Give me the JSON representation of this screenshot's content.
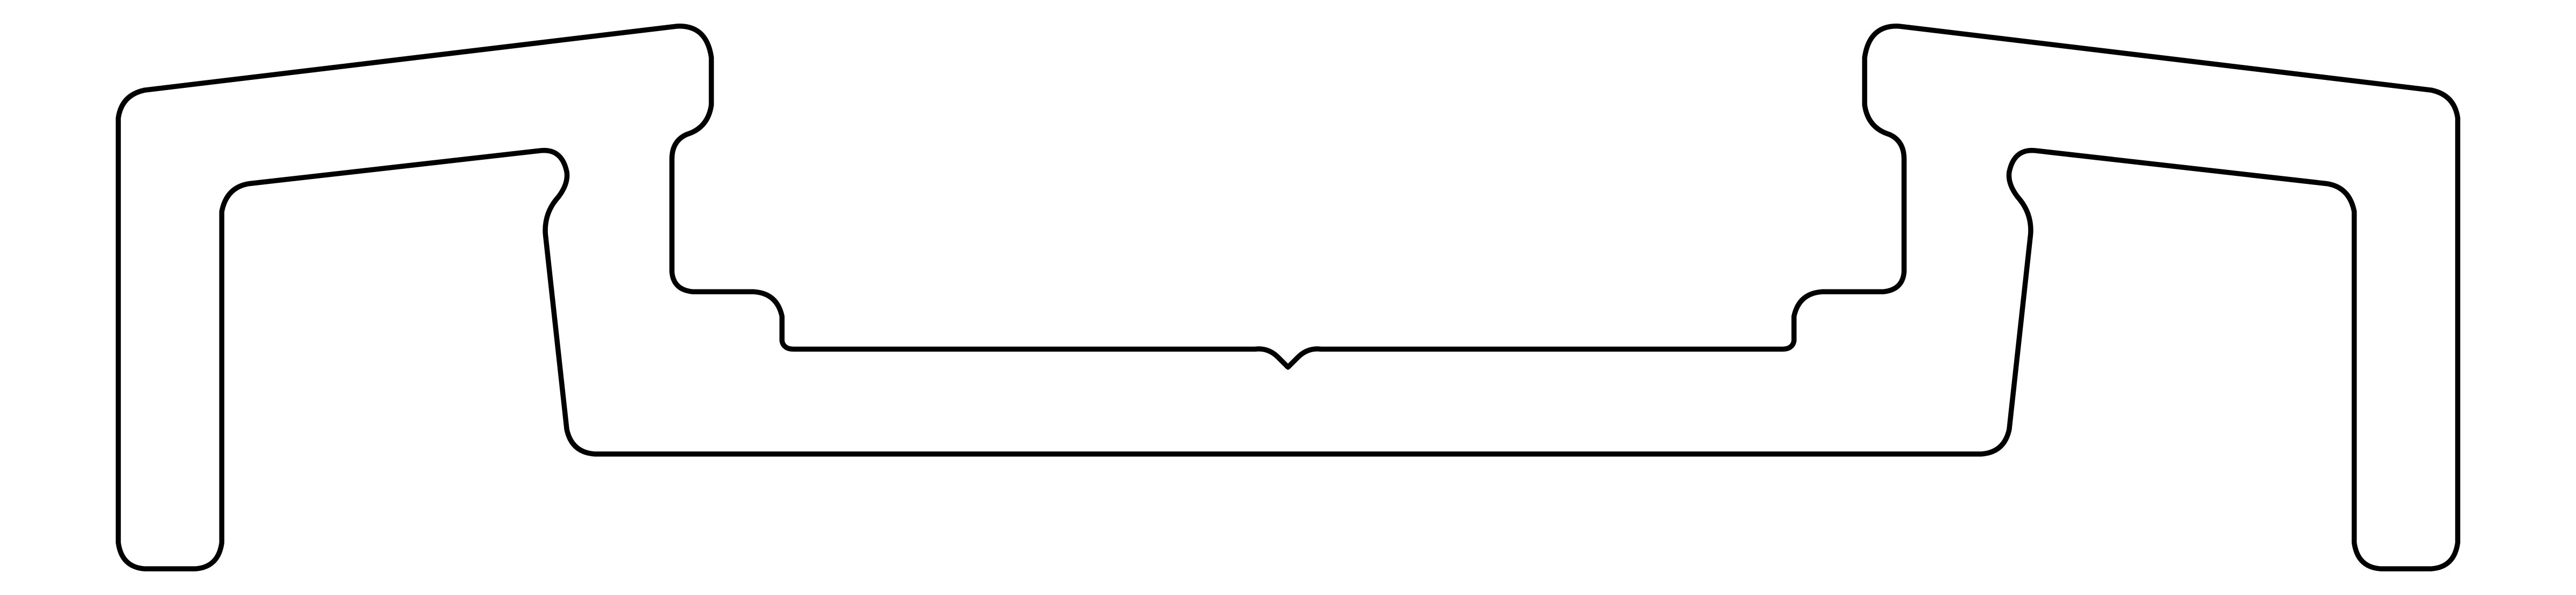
{
  "drawing": {
    "background_color": "#ffffff",
    "stroke_color": "#000000",
    "shapes": [
      {
        "name": "profile-outline",
        "kind": "closed-outline"
      }
    ]
  }
}
